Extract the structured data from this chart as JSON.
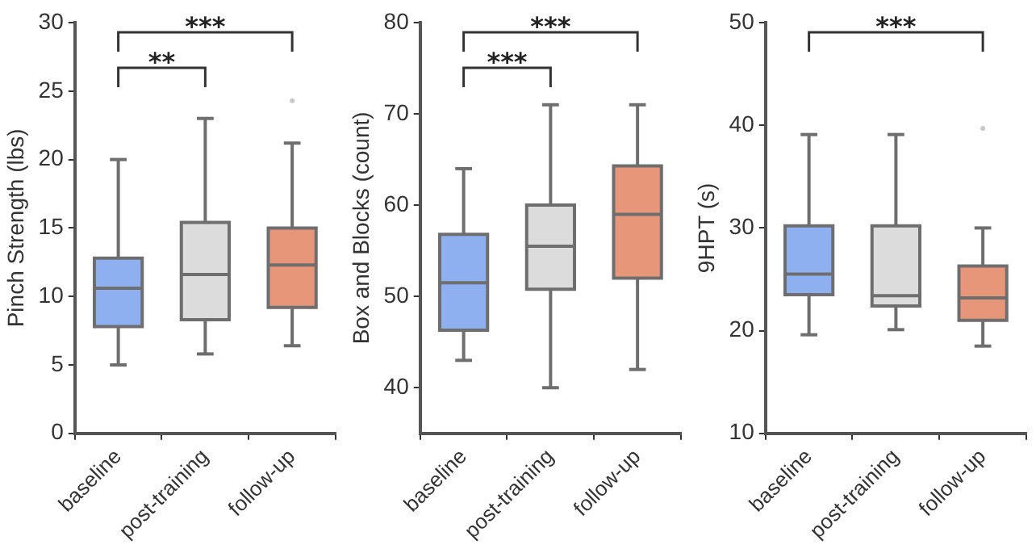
{
  "chart_data": [
    {
      "type": "box",
      "ylabel": "Pinch Strength (lbs)",
      "categories": [
        "baseline",
        "post-training",
        "follow-up"
      ],
      "colors": [
        "#8fb0f0",
        "#dcdcdc",
        "#e8967a"
      ],
      "boxes": [
        {
          "low": 5,
          "q1": 7.8,
          "median": 10.6,
          "q3": 12.8,
          "high": 20
        },
        {
          "low": 5.8,
          "q1": 8.3,
          "median": 11.6,
          "q3": 15.4,
          "high": 23
        },
        {
          "low": 6.4,
          "q1": 9.2,
          "median": 12.3,
          "q3": 15,
          "high": 21.2,
          "outliers": [
            24.3
          ]
        }
      ],
      "ylim": [
        0,
        30
      ],
      "yticks": [
        0,
        5,
        10,
        15,
        20,
        25,
        30
      ],
      "annotations": [
        "**",
        "***"
      ]
    },
    {
      "type": "box",
      "ylabel": "Box and Blocks (count)",
      "categories": [
        "baseline",
        "post-training",
        "follow-up"
      ],
      "colors": [
        "#8fb0f0",
        "#dcdcdc",
        "#e8967a"
      ],
      "boxes": [
        {
          "low": 43,
          "q1": 46.3,
          "median": 51.5,
          "q3": 56.8,
          "high": 64
        },
        {
          "low": 40,
          "q1": 50.8,
          "median": 55.5,
          "q3": 60,
          "high": 71
        },
        {
          "low": 42,
          "q1": 52,
          "median": 59,
          "q3": 64.3,
          "high": 71
        }
      ],
      "ylim": [
        35,
        80
      ],
      "yticks": [
        40,
        50,
        60,
        70,
        80
      ],
      "annotations": [
        "***",
        "***"
      ]
    },
    {
      "type": "box",
      "ylabel": "9HPT (s)",
      "categories": [
        "baseline",
        "post-training",
        "follow-up"
      ],
      "colors": [
        "#8fb0f0",
        "#dcdcdc",
        "#e8967a"
      ],
      "boxes": [
        {
          "low": 19.6,
          "q1": 23.5,
          "median": 25.5,
          "q3": 30.2,
          "high": 39.1
        },
        {
          "low": 20.1,
          "q1": 22.4,
          "median": 23.4,
          "q3": 30.2,
          "high": 39.1
        },
        {
          "low": 18.5,
          "q1": 21,
          "median": 23.2,
          "q3": 26.3,
          "high": 30,
          "outliers": [
            39.7
          ]
        }
      ],
      "ylim": [
        10,
        50
      ],
      "yticks": [
        10,
        20,
        30,
        40,
        50
      ],
      "annotations": [
        "***"
      ]
    }
  ]
}
